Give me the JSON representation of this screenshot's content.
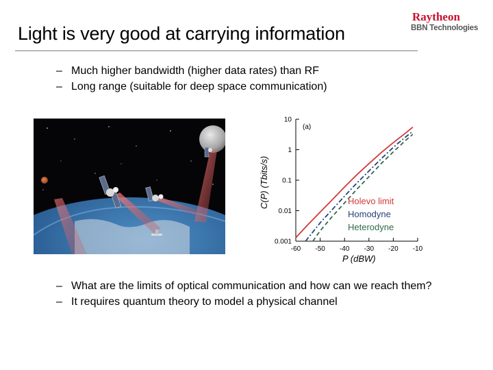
{
  "slide": {
    "title": "Light is very good at carrying information",
    "logo": {
      "brand": "Raytheon",
      "division": "BBN Technologies"
    },
    "bullets_top": [
      {
        "dash": "–",
        "text": "Much higher bandwidth (higher data rates) than RF"
      },
      {
        "dash": "–",
        "text": "Long range (suitable for deep space communication)"
      }
    ],
    "bullets_bottom": [
      {
        "dash": "–",
        "text": "What are the limits of optical communication and how can we reach them?"
      },
      {
        "dash": "–",
        "text": "It requires quantum theory to model a physical channel"
      }
    ]
  },
  "chart_data": {
    "type": "line",
    "panel_label": "(a)",
    "xlabel": "P (dBW)",
    "ylabel": "C(P) (Tbits/s)",
    "xlim": [
      -60,
      -10
    ],
    "ylim": [
      0.001,
      10
    ],
    "yscale": "log",
    "x_ticks": [
      "-60",
      "-50",
      "-40",
      "-30",
      "-20",
      "-10"
    ],
    "y_ticks": [
      "10",
      "1",
      "0.1",
      "0.01",
      "0.001"
    ],
    "legend_position": "bottom-right",
    "series": [
      {
        "name": "Holevo limit",
        "color": "#d03a3a",
        "dash": "solid",
        "x": [
          -60,
          -55,
          -50,
          -45,
          -40,
          -35,
          -30,
          -25,
          -20,
          -15,
          -12
        ],
        "y": [
          0.0013,
          0.0035,
          0.009,
          0.023,
          0.06,
          0.15,
          0.35,
          0.8,
          1.7,
          3.5,
          5.5
        ]
      },
      {
        "name": "Homodyne",
        "color": "#2a3f7a",
        "dash": "dashdot",
        "x": [
          -56,
          -50,
          -45,
          -40,
          -35,
          -30,
          -25,
          -20,
          -15,
          -12
        ],
        "y": [
          0.001,
          0.004,
          0.011,
          0.03,
          0.08,
          0.2,
          0.5,
          1.2,
          2.6,
          4.0
        ]
      },
      {
        "name": "Heterodyne",
        "color": "#2f6b4a",
        "dash": "dashed",
        "x": [
          -53,
          -50,
          -45,
          -40,
          -35,
          -30,
          -25,
          -20,
          -15,
          -12
        ],
        "y": [
          0.001,
          0.0022,
          0.0065,
          0.018,
          0.05,
          0.13,
          0.35,
          0.85,
          2.0,
          3.2
        ]
      }
    ]
  }
}
